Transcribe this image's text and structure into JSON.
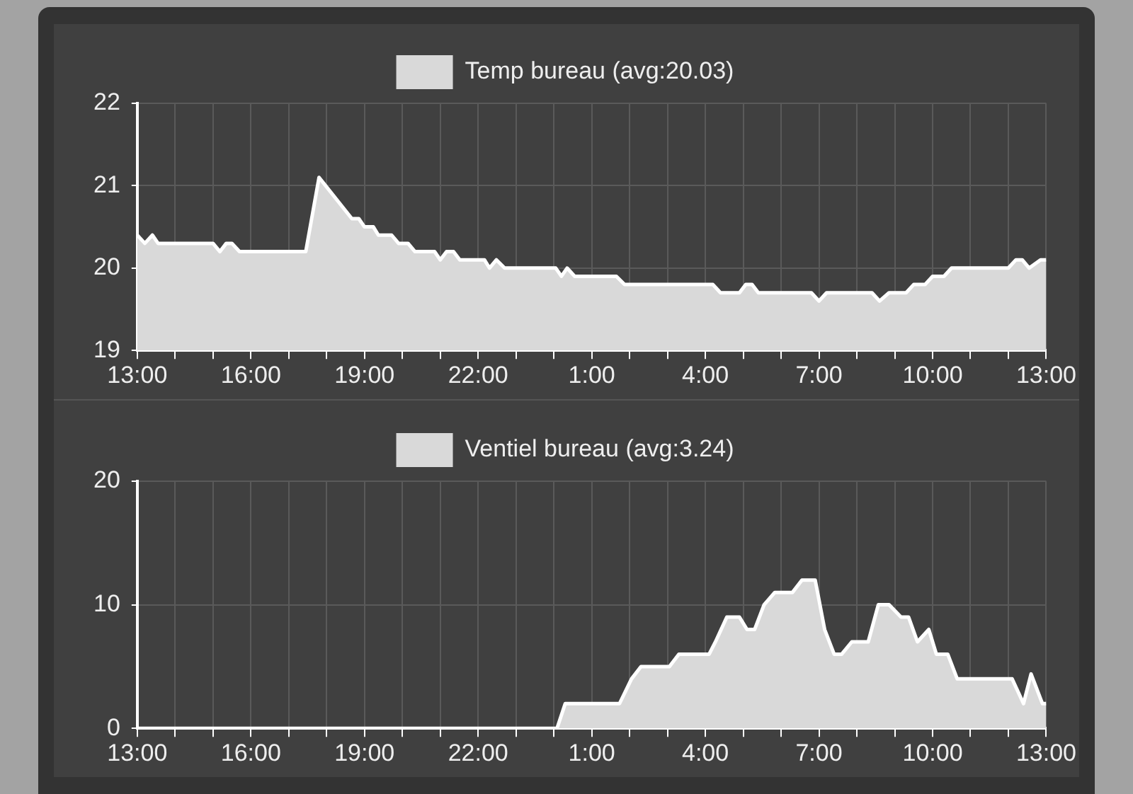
{
  "chart_data": [
    {
      "type": "area",
      "legend": "top",
      "grid": true,
      "marker": "none",
      "xlim": [
        "--01-01T13:00",
        "--01-02T13:00"
      ],
      "ylim": [
        19,
        22
      ],
      "yticks": [
        19,
        20,
        21,
        22
      ],
      "xticks": [
        {
          "value": "--01-01T13:00",
          "label": "13:00"
        },
        {
          "value": "--01-01T14:00",
          "label": null
        },
        {
          "value": "--01-01T15:00",
          "label": null
        },
        {
          "value": "--01-01T16:00",
          "label": "16:00"
        },
        {
          "value": "--01-01T17:00",
          "label": null
        },
        {
          "value": "--01-01T18:00",
          "label": null
        },
        {
          "value": "--01-01T19:00",
          "label": "19:00"
        },
        {
          "value": "--01-01T20:00",
          "label": null
        },
        {
          "value": "--01-01T21:00",
          "label": null
        },
        {
          "value": "--01-01T22:00",
          "label": "22:00"
        },
        {
          "value": "--01-01T23:00",
          "label": null
        },
        {
          "value": "--01-02T00:00",
          "label": null
        },
        {
          "value": "--01-02T01:00",
          "label": "1:00"
        },
        {
          "value": "--01-02T02:00",
          "label": null
        },
        {
          "value": "--01-02T03:00",
          "label": null
        },
        {
          "value": "--01-02T04:00",
          "label": "4:00"
        },
        {
          "value": "--01-02T05:00",
          "label": null
        },
        {
          "value": "--01-02T06:00",
          "label": null
        },
        {
          "value": "--01-02T07:00",
          "label": "7:00"
        },
        {
          "value": "--01-02T08:00",
          "label": null
        },
        {
          "value": "--01-02T09:00",
          "label": null
        },
        {
          "value": "--01-02T10:00",
          "label": "10:00"
        },
        {
          "value": "--01-02T11:00",
          "label": null
        },
        {
          "value": "--01-02T12:00",
          "label": null
        },
        {
          "value": "--01-02T13:00",
          "label": "13:00"
        }
      ],
      "series": [
        {
          "name": "Temp bureau (avg:20.03)",
          "color": "#d9d9d9",
          "x": [
            "--01-01T13:00",
            "--01-01T13:12",
            "--01-01T13:24",
            "--01-01T13:33",
            "--01-01T15:00",
            "--01-01T15:11",
            "--01-01T15:21",
            "--01-01T15:30",
            "--01-01T15:42",
            "--01-01T17:27",
            "--01-01T17:48",
            "--01-01T18:40",
            "--01-01T18:51",
            "--01-01T19:00",
            "--01-01T19:14",
            "--01-01T19:22",
            "--01-01T19:43",
            "--01-01T19:54",
            "--01-01T20:09",
            "--01-01T20:20",
            "--01-01T20:51",
            "--01-01T21:00",
            "--01-01T21:10",
            "--01-01T21:21",
            "--01-01T21:31",
            "--01-01T22:10",
            "--01-01T22:18",
            "--01-01T22:29",
            "--01-01T22:42",
            "--01-02T00:03",
            "--01-02T00:12",
            "--01-02T00:21",
            "--01-02T00:33",
            "--01-02T01:39",
            "--01-02T01:52",
            "--01-02T04:12",
            "--01-02T04:24",
            "--01-02T04:54",
            "--01-02T05:04",
            "--01-02T05:14",
            "--01-02T05:24",
            "--01-02T06:48",
            "--01-02T07:00",
            "--01-02T07:12",
            "--01-02T08:24",
            "--01-02T08:36",
            "--01-02T08:51",
            "--01-02T09:18",
            "--01-02T09:30",
            "--01-02T09:48",
            "--01-02T10:00",
            "--01-02T10:18",
            "--01-02T10:30",
            "--01-02T12:00",
            "--01-02T12:12",
            "--01-02T12:22",
            "--01-02T12:33",
            "--01-02T12:51",
            "--01-02T13:00"
          ],
          "values": [
            20.4,
            20.3,
            20.4,
            20.3,
            20.3,
            20.2,
            20.3,
            20.3,
            20.2,
            20.2,
            21.1,
            20.6,
            20.6,
            20.5,
            20.5,
            20.4,
            20.4,
            20.3,
            20.3,
            20.2,
            20.2,
            20.1,
            20.2,
            20.2,
            20.1,
            20.1,
            20.0,
            20.1,
            20.0,
            20.0,
            19.9,
            20.0,
            19.9,
            19.9,
            19.8,
            19.8,
            19.7,
            19.7,
            19.8,
            19.8,
            19.7,
            19.7,
            19.6,
            19.7,
            19.7,
            19.6,
            19.7,
            19.7,
            19.8,
            19.8,
            19.9,
            19.9,
            20.0,
            20.0,
            20.1,
            20.1,
            20.0,
            20.1,
            20.1
          ]
        }
      ]
    },
    {
      "type": "area",
      "legend": "top",
      "grid": true,
      "marker": "none",
      "xlim": [
        "--01-01T13:00",
        "--01-02T13:00"
      ],
      "ylim": [
        0,
        20
      ],
      "yticks": [
        0,
        10,
        20
      ],
      "xticks": [
        {
          "value": "--01-01T13:00",
          "label": "13:00"
        },
        {
          "value": "--01-01T14:00",
          "label": null
        },
        {
          "value": "--01-01T15:00",
          "label": null
        },
        {
          "value": "--01-01T16:00",
          "label": "16:00"
        },
        {
          "value": "--01-01T17:00",
          "label": null
        },
        {
          "value": "--01-01T18:00",
          "label": null
        },
        {
          "value": "--01-01T19:00",
          "label": "19:00"
        },
        {
          "value": "--01-01T20:00",
          "label": null
        },
        {
          "value": "--01-01T21:00",
          "label": null
        },
        {
          "value": "--01-01T22:00",
          "label": "22:00"
        },
        {
          "value": "--01-01T23:00",
          "label": null
        },
        {
          "value": "--01-02T00:00",
          "label": null
        },
        {
          "value": "--01-02T01:00",
          "label": "1:00"
        },
        {
          "value": "--01-02T02:00",
          "label": null
        },
        {
          "value": "--01-02T03:00",
          "label": null
        },
        {
          "value": "--01-02T04:00",
          "label": "4:00"
        },
        {
          "value": "--01-02T05:00",
          "label": null
        },
        {
          "value": "--01-02T06:00",
          "label": null
        },
        {
          "value": "--01-02T07:00",
          "label": "7:00"
        },
        {
          "value": "--01-02T08:00",
          "label": null
        },
        {
          "value": "--01-02T09:00",
          "label": null
        },
        {
          "value": "--01-02T10:00",
          "label": "10:00"
        },
        {
          "value": "--01-02T11:00",
          "label": null
        },
        {
          "value": "--01-02T12:00",
          "label": null
        },
        {
          "value": "--01-02T13:00",
          "label": "13:00"
        }
      ],
      "series": [
        {
          "name": "Ventiel bureau (avg:3.24)",
          "color": "#d9d9d9",
          "x": [
            "--01-01T13:00",
            "--01-02T00:05",
            "--01-02T00:18",
            "--01-02T01:44",
            "--01-02T02:03",
            "--01-02T02:18",
            "--01-02T03:03",
            "--01-02T03:18",
            "--01-02T04:06",
            "--01-02T04:16",
            "--01-02T04:34",
            "--01-02T04:54",
            "--01-02T05:06",
            "--01-02T05:18",
            "--01-02T05:33",
            "--01-02T05:50",
            "--01-02T06:18",
            "--01-02T06:33",
            "--01-02T06:54",
            "--01-02T07:09",
            "--01-02T07:24",
            "--01-02T07:36",
            "--01-02T07:52",
            "--01-02T08:18",
            "--01-02T08:34",
            "--01-02T08:51",
            "--01-02T09:10",
            "--01-02T09:22",
            "--01-02T09:36",
            "--01-02T09:54",
            "--01-02T10:06",
            "--01-02T10:24",
            "--01-02T10:39",
            "--01-02T12:06",
            "--01-02T12:24",
            "--01-02T12:36",
            "--01-02T12:54",
            "--01-02T13:00"
          ],
          "values": [
            0,
            0,
            2,
            2,
            4,
            5,
            5,
            6,
            6,
            7,
            9,
            9,
            8,
            8,
            10,
            11,
            11,
            12,
            12,
            8,
            6,
            6,
            7,
            7,
            10,
            10,
            9,
            9,
            7,
            8,
            6,
            6,
            4,
            4,
            2,
            4.4,
            2,
            2
          ]
        }
      ]
    }
  ]
}
